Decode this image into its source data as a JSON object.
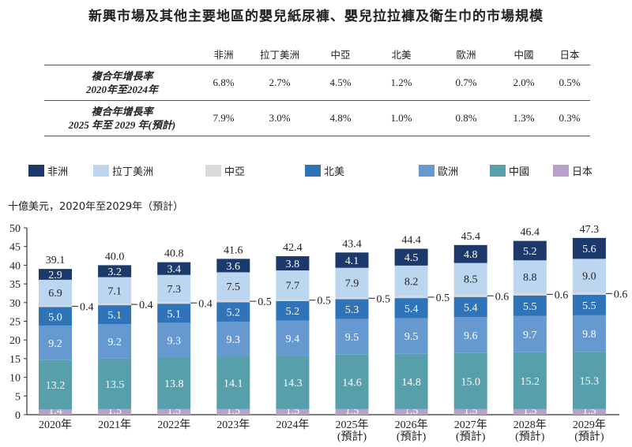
{
  "title": "新興市場及其他主要地區的嬰兒紙尿褲、嬰兒拉拉褲及衛生巾的市場規模",
  "cagr_table": {
    "headers": [
      "非洲",
      "拉丁美洲",
      "中亞",
      "北美",
      "歐洲",
      "中國",
      "日本"
    ],
    "rows": [
      {
        "label_1": "複合年增長率",
        "label_2": "2020年至2024年",
        "values": [
          "6.8%",
          "2.7%",
          "4.5%",
          "1.2%",
          "0.7%",
          "2.0%",
          "0.5%"
        ]
      },
      {
        "label_1": "複合年增長率",
        "label_2": "2025 年至 2029 年(預計)",
        "values": [
          "7.9%",
          "3.0%",
          "4.8%",
          "1.0%",
          "0.8%",
          "1.3%",
          "0.3%"
        ]
      }
    ]
  },
  "chart_data": {
    "type": "bar",
    "stacked": true,
    "ylabel": "十億美元，2020年至2029年（預計）",
    "ylim": [
      0,
      50
    ],
    "yticks": [
      0,
      5,
      10,
      15,
      20,
      25,
      30,
      35,
      40,
      45,
      50
    ],
    "categories": [
      "2020年",
      "2021年",
      "2022年",
      "2023年",
      "2024年",
      "2025年",
      "2026年",
      "2027年",
      "2028年",
      "2029年"
    ],
    "category_sublabels": [
      "",
      "",
      "",
      "",
      "",
      "(預計)",
      "(預計)",
      "(預計)",
      "(預計)",
      "(預計)"
    ],
    "totals": [
      "39.1",
      "40.0",
      "40.8",
      "41.6",
      "42.4",
      "43.4",
      "44.4",
      "45.4",
      "46.4",
      "47.3"
    ],
    "legend_placement": "top",
    "series": [
      {
        "name": "日本",
        "color": "#b9a0cb",
        "values": [
          1.4,
          1.5,
          1.5,
          1.5,
          1.5,
          1.5,
          1.5,
          1.5,
          1.5,
          1.5
        ]
      },
      {
        "name": "中國",
        "color": "#57a0ab",
        "values": [
          13.2,
          13.5,
          13.8,
          14.1,
          14.3,
          14.6,
          14.8,
          15.0,
          15.2,
          15.3
        ]
      },
      {
        "name": "歐洲",
        "color": "#6699d0",
        "values": [
          9.2,
          9.2,
          9.3,
          9.3,
          9.4,
          9.5,
          9.5,
          9.6,
          9.7,
          9.8
        ]
      },
      {
        "name": "北美",
        "color": "#2f73b8",
        "values": [
          5.0,
          5.1,
          5.1,
          5.2,
          5.2,
          5.3,
          5.4,
          5.4,
          5.5,
          5.5
        ]
      },
      {
        "name": "中亞",
        "color": "#d9d9d9",
        "values": [
          0.4,
          0.4,
          0.4,
          0.5,
          0.5,
          0.5,
          0.5,
          0.6,
          0.6,
          0.6
        ]
      },
      {
        "name": "拉丁美洲",
        "color": "#bcd6ef",
        "values": [
          6.9,
          7.1,
          7.3,
          7.5,
          7.7,
          7.9,
          8.2,
          8.5,
          8.8,
          9.0
        ]
      },
      {
        "name": "非洲",
        "color": "#1b3a6b",
        "values": [
          2.9,
          3.2,
          3.4,
          3.6,
          3.8,
          4.1,
          4.5,
          4.8,
          5.2,
          5.6
        ]
      }
    ],
    "legend_order": [
      "非洲",
      "拉丁美洲",
      "中亞",
      "北美",
      "歐洲",
      "中國",
      "日本"
    ]
  }
}
